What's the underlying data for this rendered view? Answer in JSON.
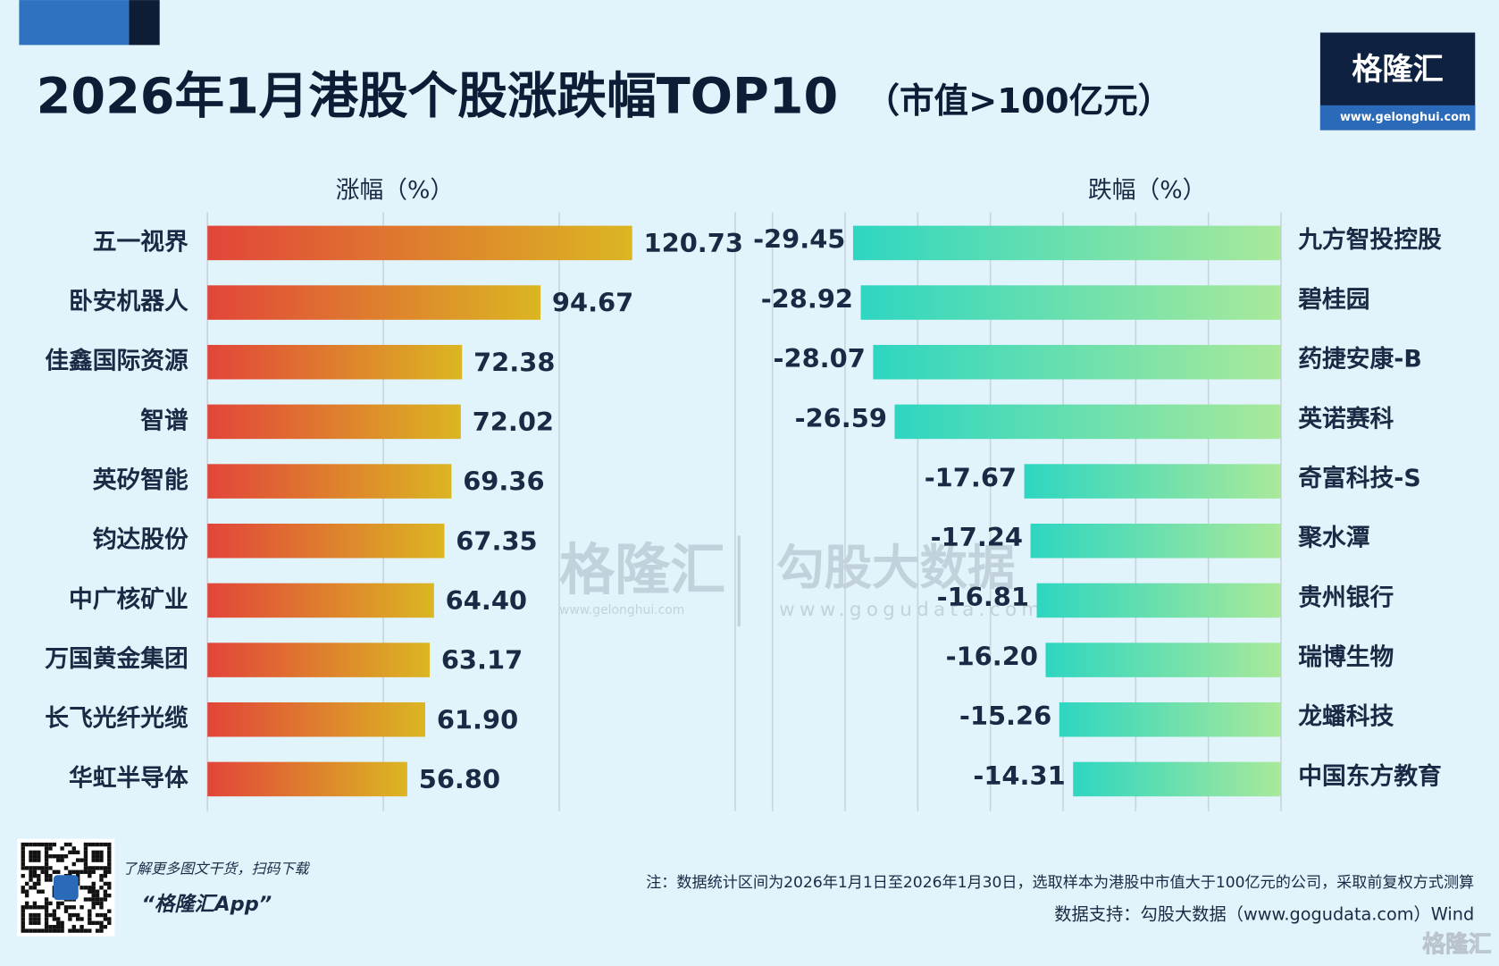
{
  "header": {
    "title": "2026年1月港股个股涨跌幅TOP10",
    "subtitle": "（市值>100亿元）",
    "logo": "格隆汇",
    "logo_url": "www.gelonghui.com"
  },
  "footer": {
    "promo": "了解更多图文干货，扫码下载",
    "app": "“格隆汇App”",
    "note": "注：数据统计区间为2026年1月1日至2026年1月30日，选取样本为港股中市值大于100亿元的公司，采取前复权方式测算",
    "source": "数据支持：勾股大数据（www.gogudata.com）Wind",
    "corner_mark": "格隆汇"
  },
  "watermark": {
    "logo": "格隆汇",
    "logo_url": "www.gelonghui.com",
    "brand": "勾股大数据",
    "brand_url": "www.gogudata.com"
  },
  "chart_data": [
    {
      "type": "bar",
      "orientation": "horizontal",
      "x_label": "涨幅（%）",
      "categories": [
        "五一视界",
        "卧安机器人",
        "佳鑫国际资源",
        "智谱",
        "英矽智能",
        "钧达股份",
        "中广核矿业",
        "万国黄金集团",
        "长飞光纤光缆",
        "华虹半导体"
      ],
      "values": [
        120.73,
        94.67,
        72.38,
        72.02,
        69.36,
        67.35,
        64.4,
        63.17,
        61.9,
        56.8
      ],
      "value_labels": [
        "120.73",
        "94.67",
        "72.38",
        "72.02",
        "69.36",
        "67.35",
        "64.40",
        "63.17",
        "61.90",
        "56.80"
      ],
      "colors": [
        "#e2453a",
        "#dbb622"
      ],
      "xlim": [
        0,
        150
      ],
      "xticks": [
        0,
        50,
        100,
        150
      ],
      "grid": true
    },
    {
      "type": "bar",
      "orientation": "horizontal",
      "x_label": "跌幅（%）",
      "categories": [
        "九方智投控股",
        "碧桂园",
        "药捷安康-B",
        "英诺赛科",
        "奇富科技-S",
        "聚水潭",
        "贵州银行",
        "瑞博生物",
        "龙蟠科技",
        "中国东方教育"
      ],
      "values": [
        -29.45,
        -28.92,
        -28.07,
        -26.59,
        -17.67,
        -17.24,
        -16.81,
        -16.2,
        -15.26,
        -14.31
      ],
      "value_labels": [
        "-29.45",
        "-28.92",
        "-28.07",
        "-26.59",
        "-17.67",
        "-17.24",
        "-16.81",
        "-16.20",
        "-15.26",
        "-14.31"
      ],
      "colors": [
        "#2ed6c1",
        "#a9e99a"
      ],
      "xlim": [
        -35,
        0
      ],
      "xticks": [
        -35,
        -30,
        -25,
        -20,
        -15,
        -10,
        -5,
        0
      ],
      "grid": true
    }
  ]
}
